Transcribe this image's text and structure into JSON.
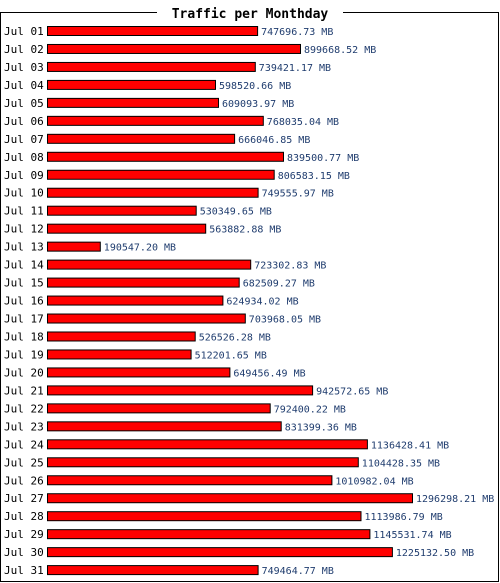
{
  "chart_data": {
    "type": "bar",
    "orientation": "horizontal",
    "title": "Traffic per Monthday",
    "categories": [
      "Jul 01",
      "Jul 02",
      "Jul 03",
      "Jul 04",
      "Jul 05",
      "Jul 06",
      "Jul 07",
      "Jul 08",
      "Jul 09",
      "Jul 10",
      "Jul 11",
      "Jul 12",
      "Jul 13",
      "Jul 14",
      "Jul 15",
      "Jul 16",
      "Jul 17",
      "Jul 18",
      "Jul 19",
      "Jul 20",
      "Jul 21",
      "Jul 22",
      "Jul 23",
      "Jul 24",
      "Jul 25",
      "Jul 26",
      "Jul 27",
      "Jul 28",
      "Jul 29",
      "Jul 30",
      "Jul 31"
    ],
    "values": [
      747696.73,
      899668.52,
      739421.17,
      598520.66,
      609093.97,
      768035.04,
      666046.85,
      839500.77,
      806583.15,
      749555.97,
      530349.65,
      563882.88,
      190547.2,
      723302.83,
      682509.27,
      624934.02,
      703968.05,
      526526.28,
      512201.65,
      649456.49,
      942572.65,
      792400.22,
      831399.36,
      1136428.41,
      1104428.35,
      1010982.04,
      1296298.21,
      1113986.79,
      1145531.74,
      1225132.5,
      749464.77
    ],
    "value_labels": [
      "747696.73 MB",
      "899668.52 MB",
      "739421.17 MB",
      "598520.66 MB",
      "609093.97 MB",
      "768035.04 MB",
      "666046.85 MB",
      "839500.77 MB",
      "806583.15 MB",
      "749555.97 MB",
      "530349.65 MB",
      "563882.88 MB",
      "190547.20 MB",
      "723302.83 MB",
      "682509.27 MB",
      "624934.02 MB",
      "703968.05 MB",
      "526526.28 MB",
      "512201.65 MB",
      "649456.49 MB",
      "942572.65 MB",
      "792400.22 MB",
      "831399.36 MB",
      "1136428.41 MB",
      "1104428.35 MB",
      "1010982.04 MB",
      "1296298.21 MB",
      "1113986.79 MB",
      "1145531.74 MB",
      "1225132.50 MB",
      "749464.77 MB"
    ],
    "unit": "MB",
    "grid": false,
    "legend": "none",
    "colors": {
      "bar": "#ff0000",
      "bar_edge": "#000000",
      "value_text": "#1f3c6e",
      "label_text": "#000000",
      "frame": "#000000"
    }
  }
}
